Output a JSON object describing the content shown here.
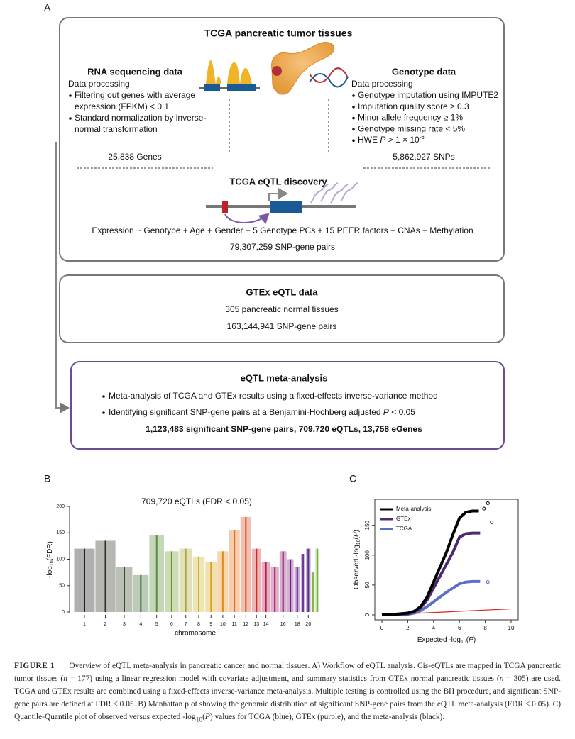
{
  "panel_labels": [
    "A",
    "B",
    "C"
  ],
  "workflow": {
    "box1": {
      "title": "TCGA pancreatic tumor tissues",
      "rna": {
        "title": "RNA sequencing data",
        "subtitle": "Data processing",
        "bullets": [
          [
            "Filtering out genes with average",
            "expression (FPKM) < 0.1"
          ],
          [
            "Standard normalization by inverse-",
            "normal transformation"
          ]
        ],
        "count": "25,838 Genes"
      },
      "genotype": {
        "title": "Genotype data",
        "subtitle": "Data processing",
        "bullets": [
          [
            {
              "t": "Genotype imputation using IMPUTE2"
            }
          ],
          [
            {
              "t": "Imputation quality score ≥ 0.3"
            }
          ],
          [
            {
              "t": "Minor allele frequency ≥ 1%"
            }
          ],
          [
            {
              "t": "Genotype missing rate < 5%"
            }
          ],
          [
            {
              "t": "HWE "
            },
            {
              "t": "P",
              "s": "i"
            },
            {
              "t": " > 1 × 10"
            },
            {
              "t": "-6",
              "s": "sup"
            }
          ]
        ],
        "count": "5,862,927 SNPs"
      },
      "discovery_title": "TCGA eQTL discovery",
      "model": "Expression ~ Genotype + Age + Gender + 5 Genotype PCs + 15 PEER factors + CNAs + Methylation",
      "pairs": "79,307,259 SNP-gene pairs"
    },
    "box2": {
      "title": "GTEx eQTL data",
      "lines": [
        "305 pancreatic normal tissues",
        "163,144,941 SNP-gene pairs"
      ]
    },
    "box3": {
      "title": "eQTL meta-analysis",
      "bullets": [
        [
          {
            "t": "Meta-analysis of TCGA and GTEx results using a fixed-effects inverse-variance method"
          }
        ],
        [
          {
            "t": "Identifying significant SNP-gene pairs at a Benjamini-Hochberg adjusted "
          },
          {
            "t": "P",
            "s": "i"
          },
          {
            "t": " < 0.05"
          }
        ]
      ],
      "summary": "1,123,483 significant SNP-gene pairs, 709,720 eQTLs, 13,758 eGenes"
    }
  },
  "chart_data": [
    {
      "type": "manhattan",
      "title": "709,720 eQTLs (FDR < 0.05)",
      "xlabel": "chromosome",
      "ylabel": [
        {
          "t": "-log"
        },
        {
          "t": "10",
          "s": "sub"
        },
        {
          "t": "(FDR)"
        }
      ],
      "categories": [
        "1",
        "2",
        "3",
        "4",
        "5",
        "6",
        "7",
        "8",
        "9",
        "10",
        "11",
        "12",
        "13",
        "14",
        null,
        "16",
        null,
        "18",
        null,
        "20",
        null,
        null
      ],
      "values": [
        120,
        135,
        85,
        70,
        145,
        115,
        120,
        105,
        95,
        115,
        155,
        180,
        120,
        95,
        85,
        115,
        100,
        85,
        110,
        120,
        75,
        120
      ],
      "colors": [
        "#1b1b1b",
        "#2d2d22",
        "#3a4a2c",
        "#3f6a32",
        "#5a8c3a",
        "#6d9a2a",
        "#a8a63a",
        "#c9b42a",
        "#d6a41c",
        "#df8c1a",
        "#e2701c",
        "#db4a1d",
        "#cc2a2c",
        "#b5184a",
        "#a01a62",
        "#8c1a72",
        "#7a1a82",
        "#62208c",
        "#70389a",
        "#5a2a86",
        "#86b640",
        "#6fae34"
      ],
      "ylim": [
        0,
        200
      ],
      "yticks": [
        0,
        50,
        100,
        150,
        200
      ]
    },
    {
      "type": "line",
      "xlabel": [
        {
          "t": "Expected -log"
        },
        {
          "t": "10",
          "s": "sub"
        },
        {
          "t": "("
        },
        {
          "t": "P",
          "s": "i"
        },
        {
          "t": ")"
        }
      ],
      "ylabel": [
        {
          "t": "Observed -log"
        },
        {
          "t": "10",
          "s": "sub"
        },
        {
          "t": "("
        },
        {
          "t": "P",
          "s": "i"
        },
        {
          "t": ")"
        }
      ],
      "xlim": [
        0,
        10
      ],
      "xticks": [
        0,
        2,
        4,
        6,
        8,
        10
      ],
      "ylim": [
        0,
        190
      ],
      "yticks": [
        0,
        50,
        100,
        150
      ],
      "reference_color": "#e2231a",
      "legend": "upper left",
      "series": [
        {
          "name": "Meta-analysis",
          "color": "#000000",
          "x": [
            0,
            1,
            2,
            2.5,
            3,
            3.5,
            4,
            4.5,
            5,
            5.5,
            6,
            6.5,
            7,
            7.5
          ],
          "values": [
            0,
            1,
            3,
            6,
            14,
            30,
            55,
            80,
            105,
            135,
            162,
            172,
            174,
            174
          ],
          "outlier_x": [
            7.9,
            8.2
          ],
          "outlier_y": [
            178,
            187
          ]
        },
        {
          "name": "GTEx",
          "color": "#4b2a6e",
          "x": [
            0,
            2,
            2.5,
            3,
            3.5,
            4,
            4.5,
            5,
            5.5,
            6,
            6.5,
            7,
            7.6
          ],
          "values": [
            0,
            2,
            5,
            12,
            25,
            45,
            65,
            85,
            105,
            130,
            136,
            137,
            137
          ],
          "outlier_x": [
            8.5
          ],
          "outlier_y": [
            155
          ]
        },
        {
          "name": "TCGA",
          "color": "#5a6fc8",
          "x": [
            0,
            2,
            2.5,
            3,
            3.5,
            4,
            4.5,
            5,
            5.5,
            6,
            6.5,
            7,
            7.6
          ],
          "values": [
            0,
            1,
            3,
            7,
            14,
            22,
            30,
            38,
            45,
            52,
            55,
            56,
            56
          ],
          "outlier_x": [
            8.2
          ],
          "outlier_y": [
            55
          ]
        }
      ]
    }
  ],
  "caption": {
    "label": "FIGURE 1",
    "separator": "|",
    "segments": [
      {
        "t": "Overview of eQTL meta-analysis in pancreatic cancer and normal tissues. A) Workflow of eQTL analysis. Cis-eQTLs are mapped in TCGA pancreatic tumor tissues ("
      },
      {
        "t": "n",
        "s": "i"
      },
      {
        "t": " = 177) using a linear regression model with covariate adjustment, and summary statistics from GTEx normal pancreatic tissues ("
      },
      {
        "t": "n",
        "s": "i"
      },
      {
        "t": " = 305) are used. TCGA and GTEx results are combined using a fixed-effects inverse-variance meta-analysis. Multiple testing is controlled using the BH procedure, and significant SNP-gene pairs are defined at FDR < 0.05. B) Manhattan plot showing the genomic distribution of significant SNP-gene pairs from the eQTL meta-analysis (FDR < 0.05). C) Quantile-Quantile plot of observed versus expected -log"
      },
      {
        "t": "10",
        "s": "sub"
      },
      {
        "t": "("
      },
      {
        "t": "P",
        "s": "i"
      },
      {
        "t": ") values for TCGA (blue), GTEx (purple), and the meta-analysis (black)."
      }
    ]
  }
}
